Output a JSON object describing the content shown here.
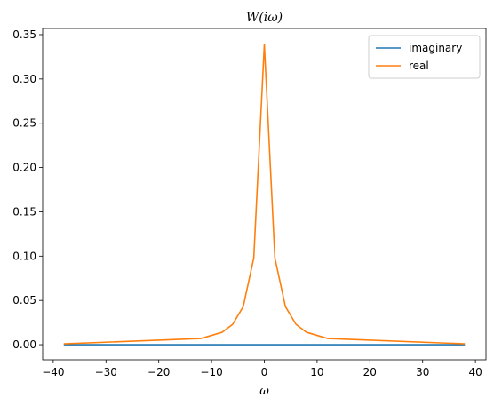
{
  "chart_data": {
    "type": "line",
    "title": "W(iω)",
    "xlabel": "ω",
    "ylabel": "",
    "xlim": [
      -42,
      42
    ],
    "ylim": [
      -0.017,
      0.357
    ],
    "xticks": [
      -40,
      -30,
      -20,
      -10,
      0,
      10,
      20,
      30,
      40
    ],
    "yticks": [
      "0.00",
      "0.05",
      "0.10",
      "0.15",
      "0.20",
      "0.25",
      "0.30",
      "0.35"
    ],
    "grid": false,
    "legend_position": "top-right",
    "series": [
      {
        "name": "imaginary",
        "color": "#1f77b4",
        "x": [
          -38,
          -12,
          -8,
          -6,
          -4,
          -2,
          0,
          2,
          4,
          6,
          8,
          12,
          38
        ],
        "y": [
          0,
          0,
          0,
          0,
          0,
          0,
          0,
          0,
          0,
          0,
          0,
          0,
          0
        ]
      },
      {
        "name": "real",
        "color": "#ff7f0e",
        "x": [
          -38,
          -12,
          -8,
          -6,
          -4,
          -2,
          0,
          2,
          4,
          6,
          8,
          12,
          38
        ],
        "y": [
          0.001,
          0.007,
          0.014,
          0.023,
          0.043,
          0.098,
          0.339,
          0.098,
          0.043,
          0.023,
          0.014,
          0.007,
          0.001
        ]
      }
    ]
  }
}
